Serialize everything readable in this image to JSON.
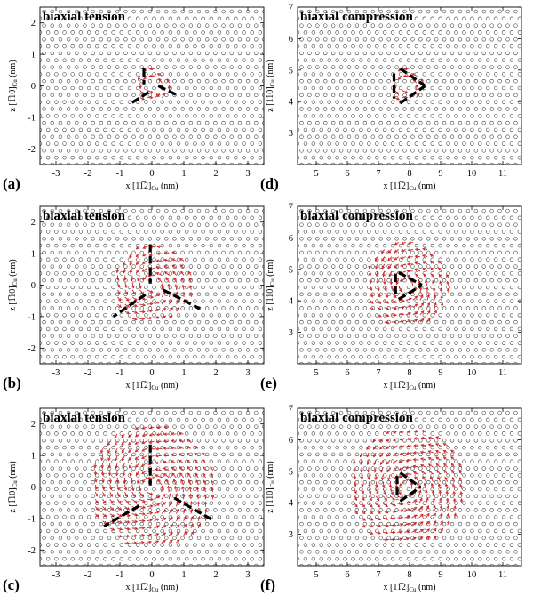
{
  "chart_data": [
    {
      "panel": "(a)",
      "type": "scatter",
      "title": "biaxial tension",
      "xlabel": "x [11̅2]",
      "ylabel": "z [1̅10]",
      "unit_sub": "Cu",
      "unit": " (nm)",
      "xlim": [
        -3.5,
        3.5
      ],
      "ylim": [
        -2.5,
        2.5
      ],
      "xticks": [
        -3,
        -2,
        -1,
        0,
        1,
        2,
        3
      ],
      "yticks": [
        -2,
        -1,
        0,
        1,
        2
      ],
      "center": [
        0,
        0
      ],
      "vector_radius": 0.6,
      "dash_lines": [
        [
          [
            -0.25,
            0.55
          ],
          [
            -0.25,
            0.05
          ]
        ],
        [
          [
            0.2,
            0.0
          ],
          [
            0.8,
            -0.3
          ]
        ],
        [
          [
            -0.1,
            -0.2
          ],
          [
            -0.65,
            -0.55
          ]
        ]
      ]
    },
    {
      "panel": "(d)",
      "type": "scatter",
      "title": "biaxial compression",
      "xlabel": "x [11̅2]",
      "ylabel": "z [1̅10]",
      "unit_sub": "Cu",
      "unit": " (nm)",
      "xlim": [
        4.4,
        11.6
      ],
      "ylim": [
        2.0,
        7.0
      ],
      "xticks": [
        5,
        6,
        7,
        8,
        9,
        10,
        11
      ],
      "yticks": [
        3,
        4,
        5,
        6,
        7
      ],
      "center": [
        7.9,
        4.5
      ],
      "vector_radius": 0.6,
      "dash_lines": [
        [
          [
            7.5,
            4.9
          ],
          [
            7.5,
            4.1
          ]
        ],
        [
          [
            7.7,
            5.05
          ],
          [
            8.5,
            4.5
          ]
        ],
        [
          [
            7.7,
            3.95
          ],
          [
            8.5,
            4.5
          ]
        ]
      ]
    },
    {
      "panel": "(b)",
      "type": "scatter",
      "title": "biaxial tension",
      "xlabel": "x [11̅2]",
      "ylabel": "z [1̅10]",
      "unit_sub": "Cu",
      "unit": " (nm)",
      "xlim": [
        -3.5,
        3.5
      ],
      "ylim": [
        -2.5,
        2.5
      ],
      "xticks": [
        -3,
        -2,
        -1,
        0,
        1,
        2,
        3
      ],
      "yticks": [
        -2,
        -1,
        0,
        1,
        2
      ],
      "center": [
        0,
        0
      ],
      "vector_radius": 1.3,
      "dash_lines": [
        [
          [
            -0.05,
            1.3
          ],
          [
            -0.05,
            0.05
          ]
        ],
        [
          [
            0.35,
            -0.15
          ],
          [
            1.5,
            -0.75
          ]
        ],
        [
          [
            -0.2,
            -0.3
          ],
          [
            -1.2,
            -1.0
          ]
        ]
      ]
    },
    {
      "panel": "(e)",
      "type": "scatter",
      "title": "biaxial compression",
      "xlabel": "x [11̅2]",
      "ylabel": "z [1̅10]",
      "unit_sub": "Cu",
      "unit": " (nm)",
      "xlim": [
        4.4,
        11.6
      ],
      "ylim": [
        2.0,
        7.0
      ],
      "xticks": [
        5,
        6,
        7,
        8,
        9,
        10,
        11
      ],
      "yticks": [
        3,
        4,
        5,
        6,
        7
      ],
      "center": [
        7.9,
        4.5
      ],
      "vector_radius": 1.4,
      "dash_lines": [
        [
          [
            7.55,
            4.85
          ],
          [
            7.55,
            4.1
          ]
        ],
        [
          [
            7.65,
            4.9
          ],
          [
            8.4,
            4.5
          ]
        ],
        [
          [
            7.65,
            4.05
          ],
          [
            8.4,
            4.5
          ]
        ]
      ]
    },
    {
      "panel": "(c)",
      "type": "scatter",
      "title": "biaxial tension",
      "xlabel": "x [11̅2]",
      "ylabel": "z [1̅10]",
      "unit_sub": "Cu",
      "unit": " (nm)",
      "xlim": [
        -3.5,
        3.5
      ],
      "ylim": [
        -2.5,
        2.5
      ],
      "xticks": [
        -3,
        -2,
        -1,
        0,
        1,
        2,
        3
      ],
      "yticks": [
        -2,
        -1,
        0,
        1,
        2
      ],
      "center": [
        0,
        0
      ],
      "vector_radius": 2.0,
      "dash_lines": [
        [
          [
            -0.05,
            1.35
          ],
          [
            -0.05,
            0.05
          ]
        ],
        [
          [
            0.7,
            -0.35
          ],
          [
            1.9,
            -1.05
          ]
        ],
        [
          [
            -0.4,
            -0.6
          ],
          [
            -1.5,
            -1.25
          ]
        ]
      ]
    },
    {
      "panel": "(f)",
      "type": "scatter",
      "title": "biaxial compression",
      "xlabel": "x [11̅2]",
      "ylabel": "z [1̅10]",
      "unit_sub": "Cu",
      "unit": " (nm)",
      "xlim": [
        4.4,
        11.6
      ],
      "ylim": [
        2.0,
        7.0
      ],
      "xticks": [
        5,
        6,
        7,
        8,
        9,
        10,
        11
      ],
      "yticks": [
        3,
        4,
        5,
        6,
        7
      ],
      "center": [
        7.9,
        4.5
      ],
      "vector_radius": 1.9,
      "dash_lines": [
        [
          [
            7.6,
            4.85
          ],
          [
            7.6,
            4.1
          ]
        ],
        [
          [
            7.7,
            4.95
          ],
          [
            8.35,
            4.5
          ]
        ],
        [
          [
            7.7,
            4.05
          ],
          [
            8.35,
            4.5
          ]
        ]
      ]
    }
  ]
}
